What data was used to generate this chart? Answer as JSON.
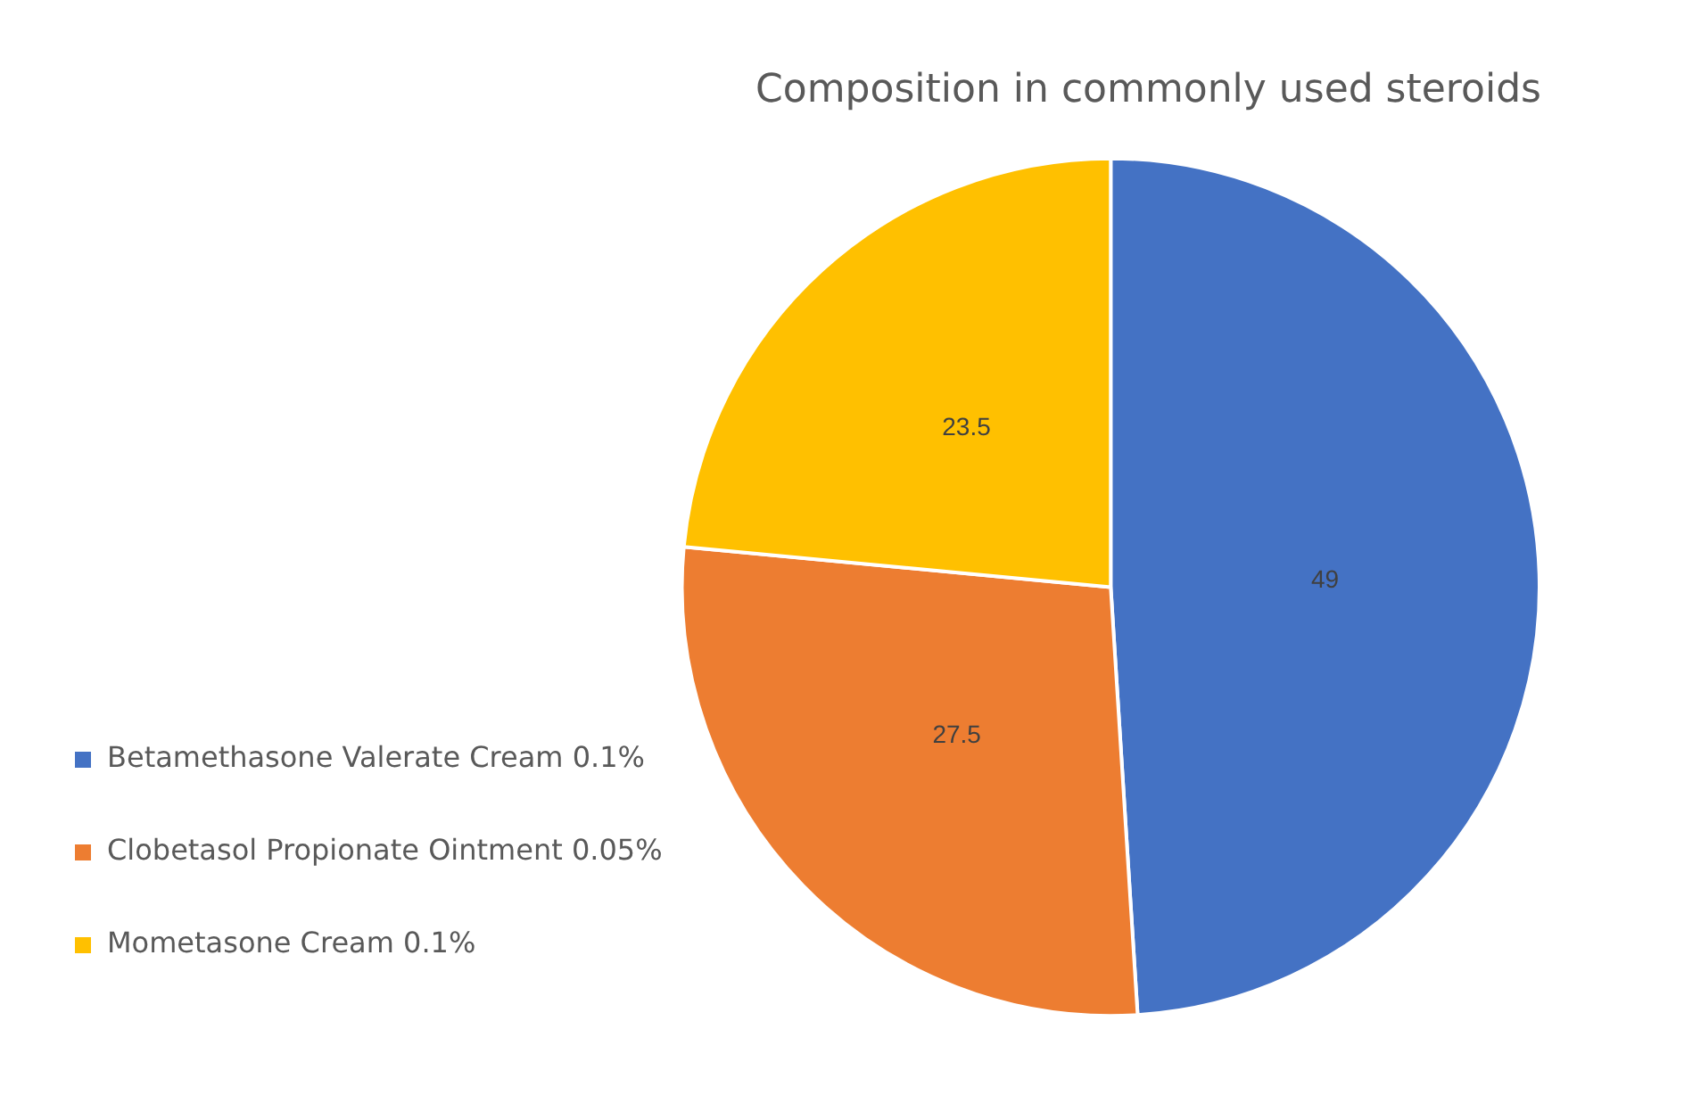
{
  "chart_data": {
    "type": "pie",
    "title": "Composition in commonly used steroids",
    "categories": [
      "Betamethasone Valerate Cream 0.1%",
      "Clobetasol Propionate Ointment 0.05%",
      "Mometasone Cream 0.1%"
    ],
    "values": [
      49,
      27.5,
      23.5
    ],
    "colors": [
      "#4472c4",
      "#ed7d31",
      "#ffc000"
    ],
    "data_labels": true,
    "legend": "bottom left"
  }
}
